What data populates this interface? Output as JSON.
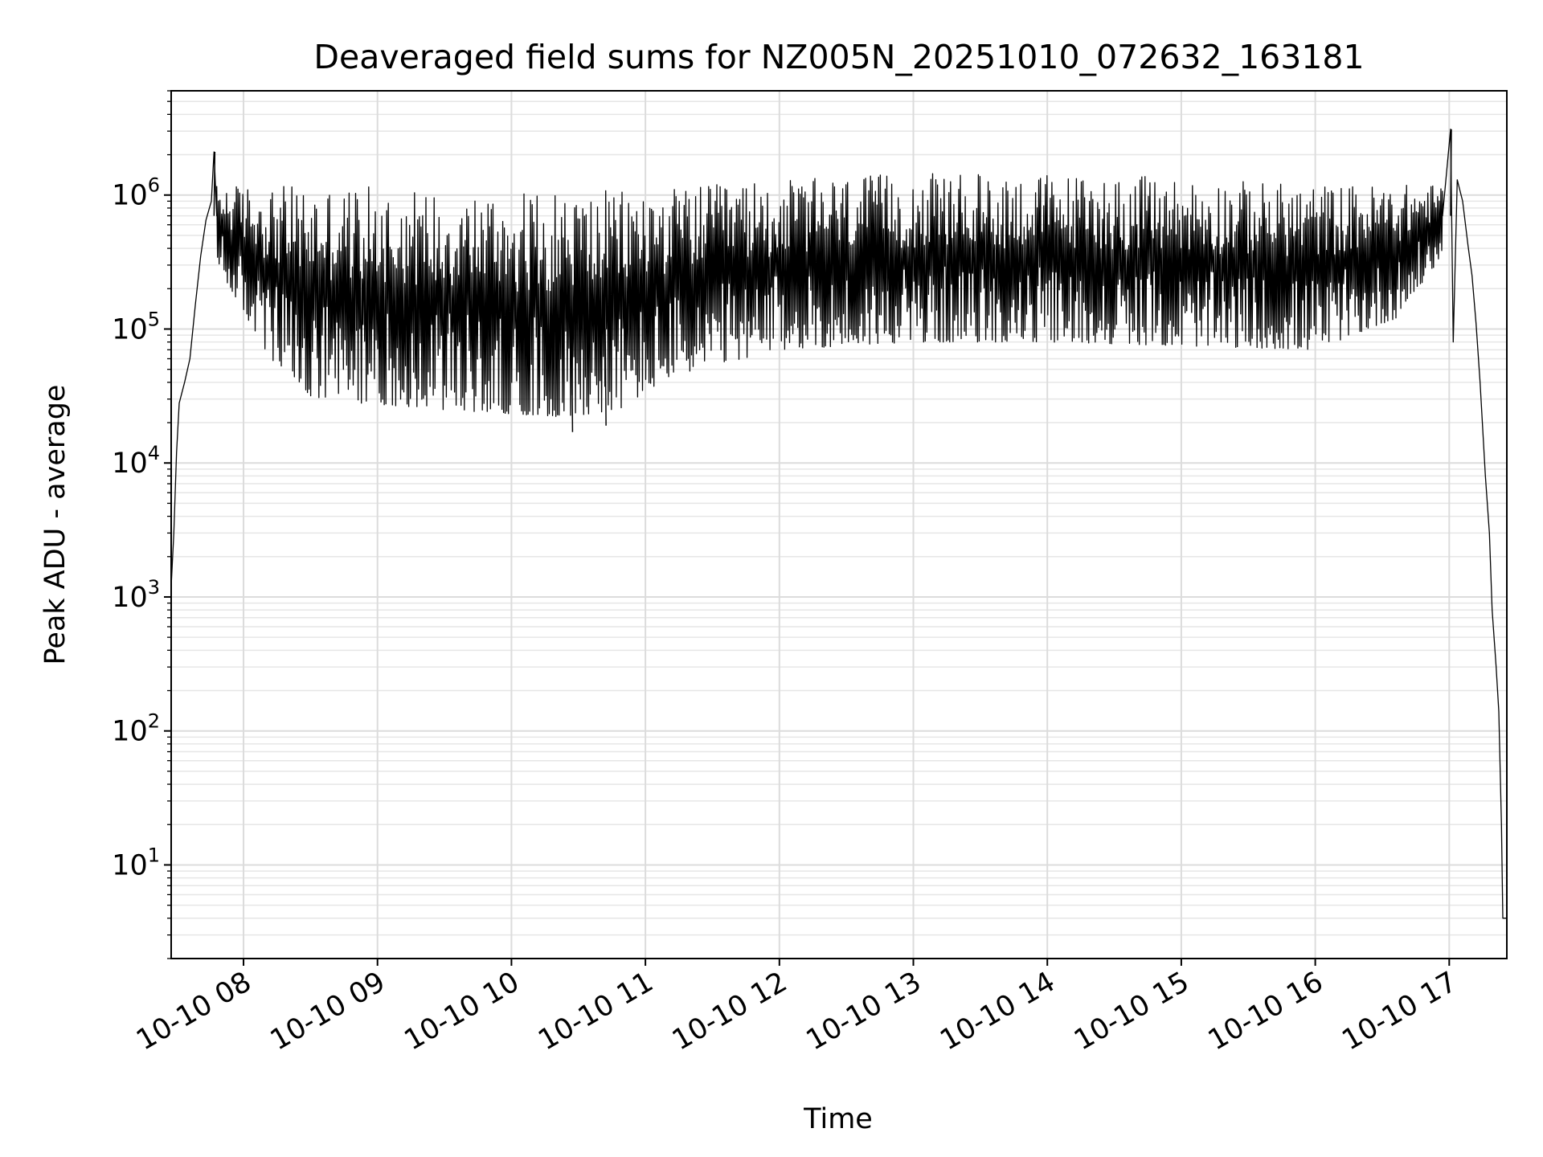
{
  "chart_data": {
    "type": "line",
    "title": "Deaveraged field sums for NZ005N_20251010_072632_163181",
    "xlabel": "Time",
    "ylabel": "Peak ADU - average",
    "yscale": "log",
    "ylim": [
      2,
      6000000
    ],
    "xlim_hours": [
      7.46,
      17.43
    ],
    "grid": true,
    "line_color": "#000000",
    "x_ticks": [
      {
        "label": "10-10 08",
        "hour": 8
      },
      {
        "label": "10-10 09",
        "hour": 9
      },
      {
        "label": "10-10 10",
        "hour": 10
      },
      {
        "label": "10-10 11",
        "hour": 11
      },
      {
        "label": "10-10 12",
        "hour": 12
      },
      {
        "label": "10-10 13",
        "hour": 13
      },
      {
        "label": "10-10 14",
        "hour": 14
      },
      {
        "label": "10-10 15",
        "hour": 15
      },
      {
        "label": "10-10 16",
        "hour": 16
      },
      {
        "label": "10-10 17",
        "hour": 17
      }
    ],
    "y_ticks": [
      {
        "base": "10",
        "exp": "1",
        "value": 10
      },
      {
        "base": "10",
        "exp": "2",
        "value": 100
      },
      {
        "base": "10",
        "exp": "3",
        "value": 1000
      },
      {
        "base": "10",
        "exp": "4",
        "value": 10000
      },
      {
        "base": "10",
        "exp": "5",
        "value": 100000
      },
      {
        "base": "10",
        "exp": "6",
        "value": 1000000
      }
    ],
    "series": [
      {
        "name": "field sums",
        "ramp_up": [
          [
            7.46,
            1200
          ],
          [
            7.48,
            3000
          ],
          [
            7.5,
            12000
          ],
          [
            7.52,
            28000
          ],
          [
            7.56,
            40000
          ],
          [
            7.6,
            60000
          ],
          [
            7.64,
            150000
          ],
          [
            7.68,
            350000
          ],
          [
            7.72,
            650000
          ],
          [
            7.76,
            900000
          ],
          [
            7.78,
            2100000
          ],
          [
            7.8,
            700000
          ]
        ],
        "upper_envelope": [
          [
            7.8,
            1200000
          ],
          [
            9.0,
            1150000
          ],
          [
            10.0,
            1050000
          ],
          [
            11.0,
            1100000
          ],
          [
            12.0,
            1300000
          ],
          [
            13.0,
            1450000
          ],
          [
            14.0,
            1450000
          ],
          [
            15.0,
            1350000
          ],
          [
            16.0,
            1200000
          ],
          [
            16.95,
            1200000
          ]
        ],
        "lower_envelope": [
          [
            7.8,
            300000
          ],
          [
            8.2,
            60000
          ],
          [
            8.5,
            30000
          ],
          [
            9.5,
            25000
          ],
          [
            10.4,
            22000
          ],
          [
            10.8,
            25000
          ],
          [
            11.2,
            45000
          ],
          [
            12.0,
            70000
          ],
          [
            13.0,
            80000
          ],
          [
            14.0,
            80000
          ],
          [
            15.0,
            75000
          ],
          [
            16.0,
            70000
          ],
          [
            16.6,
            120000
          ],
          [
            16.95,
            350000
          ]
        ],
        "spikes": [
          [
            7.78,
            2100000
          ],
          [
            10.45,
            17000
          ],
          [
            10.7,
            19000
          ],
          [
            17.01,
            3100000
          ]
        ],
        "ramp_down": [
          [
            16.95,
            700000
          ],
          [
            17.01,
            3100000
          ],
          [
            17.03,
            80000
          ],
          [
            17.06,
            1300000
          ],
          [
            17.1,
            900000
          ],
          [
            17.14,
            420000
          ],
          [
            17.17,
            250000
          ],
          [
            17.2,
            110000
          ],
          [
            17.23,
            40000
          ],
          [
            17.27,
            8000
          ],
          [
            17.3,
            3000
          ],
          [
            17.32,
            800
          ],
          [
            17.35,
            300
          ],
          [
            17.37,
            140
          ],
          [
            17.39,
            20
          ],
          [
            17.4,
            4
          ],
          [
            17.43,
            4
          ]
        ]
      }
    ]
  }
}
